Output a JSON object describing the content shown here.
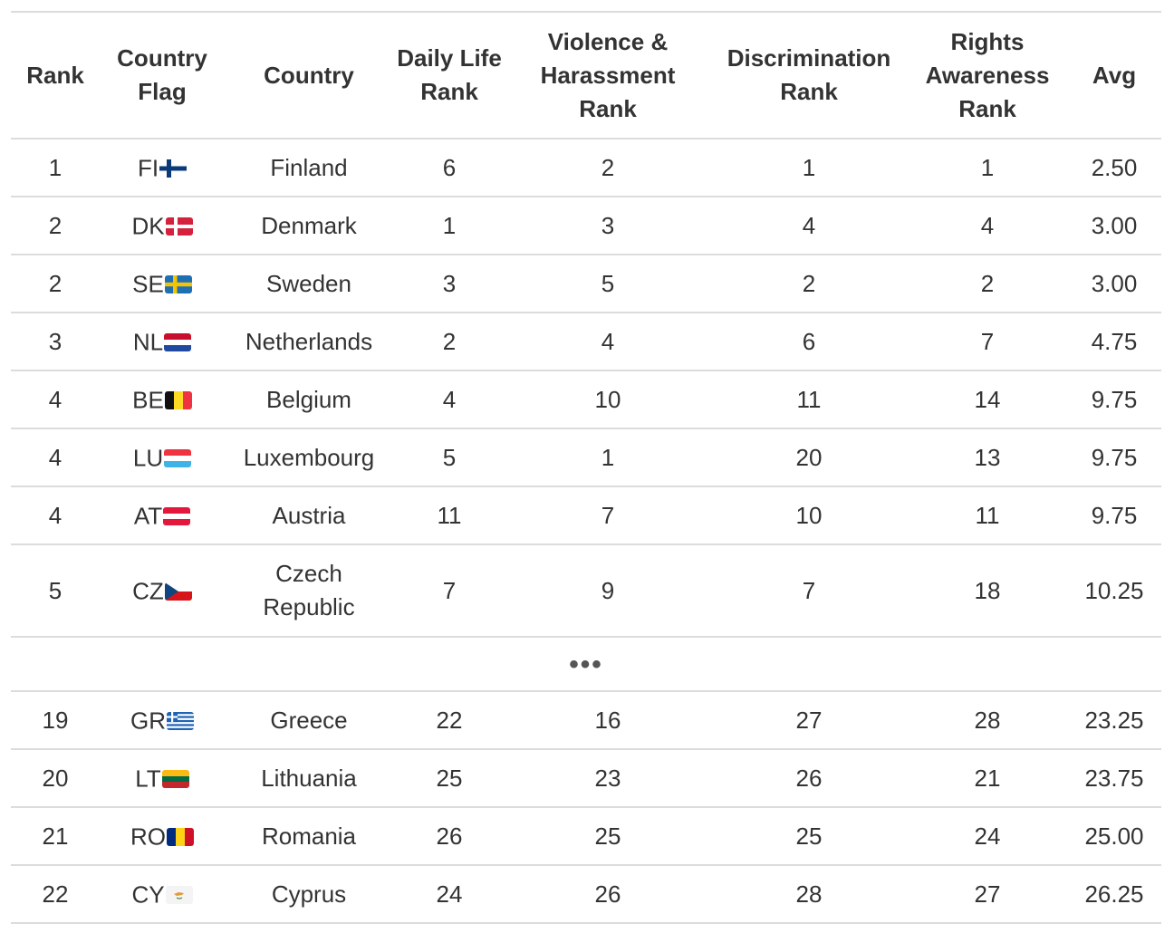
{
  "headers": {
    "rank": "Rank",
    "flag": "Country Flag",
    "country": "Country",
    "daily": "Daily Life Rank",
    "violence": "Violence & Harassment Rank",
    "discrimination": "Discrimination Rank",
    "rights": "Rights Awareness Rank",
    "avg": "Avg"
  },
  "rows_top": [
    {
      "rank": "1",
      "code": "FI",
      "flag_icon": "finland-flag-icon",
      "country": "Finland",
      "daily": "6",
      "violence": "2",
      "discrimination": "1",
      "rights": "1",
      "avg": "2.50"
    },
    {
      "rank": "2",
      "code": "DK",
      "flag_icon": "denmark-flag-icon",
      "country": "Denmark",
      "daily": "1",
      "violence": "3",
      "discrimination": "4",
      "rights": "4",
      "avg": "3.00"
    },
    {
      "rank": "2",
      "code": "SE",
      "flag_icon": "sweden-flag-icon",
      "country": "Sweden",
      "daily": "3",
      "violence": "5",
      "discrimination": "2",
      "rights": "2",
      "avg": "3.00"
    },
    {
      "rank": "3",
      "code": "NL",
      "flag_icon": "netherlands-flag-icon",
      "country": "Netherlands",
      "daily": "2",
      "violence": "4",
      "discrimination": "6",
      "rights": "7",
      "avg": "4.75"
    },
    {
      "rank": "4",
      "code": "BE",
      "flag_icon": "belgium-flag-icon",
      "country": "Belgium",
      "daily": "4",
      "violence": "10",
      "discrimination": "11",
      "rights": "14",
      "avg": "9.75"
    },
    {
      "rank": "4",
      "code": "LU",
      "flag_icon": "luxembourg-flag-icon",
      "country": "Luxembourg",
      "daily": "5",
      "violence": "1",
      "discrimination": "20",
      "rights": "13",
      "avg": "9.75"
    },
    {
      "rank": "4",
      "code": "AT",
      "flag_icon": "austria-flag-icon",
      "country": "Austria",
      "daily": "11",
      "violence": "7",
      "discrimination": "10",
      "rights": "11",
      "avg": "9.75"
    },
    {
      "rank": "5",
      "code": "CZ",
      "flag_icon": "czech-republic-flag-icon",
      "country": "Czech Republic",
      "daily": "7",
      "violence": "9",
      "discrimination": "7",
      "rights": "18",
      "avg": "10.25"
    }
  ],
  "ellipsis": "•••",
  "rows_bottom": [
    {
      "rank": "19",
      "code": "GR",
      "flag_icon": "greece-flag-icon",
      "country": "Greece",
      "daily": "22",
      "violence": "16",
      "discrimination": "27",
      "rights": "28",
      "avg": "23.25"
    },
    {
      "rank": "20",
      "code": "LT",
      "flag_icon": "lithuania-flag-icon",
      "country": "Lithuania",
      "daily": "25",
      "violence": "23",
      "discrimination": "26",
      "rights": "21",
      "avg": "23.75"
    },
    {
      "rank": "21",
      "code": "RO",
      "flag_icon": "romania-flag-icon",
      "country": "Romania",
      "daily": "26",
      "violence": "25",
      "discrimination": "25",
      "rights": "24",
      "avg": "25.00"
    },
    {
      "rank": "22",
      "code": "CY",
      "flag_icon": "cyprus-flag-icon",
      "country": "Cyprus",
      "daily": "24",
      "violence": "26",
      "discrimination": "28",
      "rights": "27",
      "avg": "26.25"
    }
  ]
}
